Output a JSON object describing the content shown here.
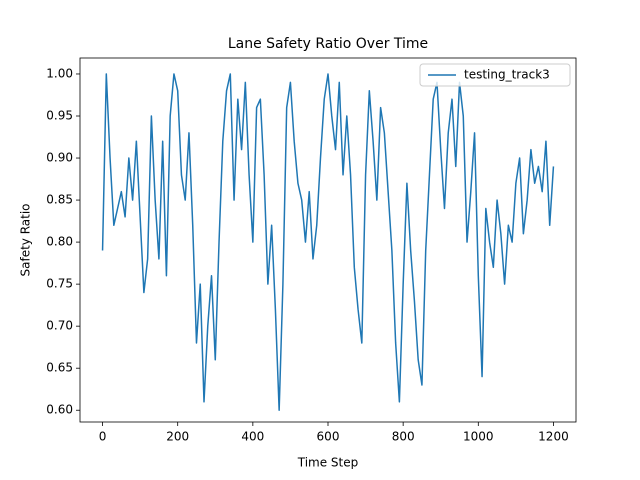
{
  "chart_data": {
    "type": "line",
    "title": "Lane Safety Ratio Over Time",
    "xlabel": "Time Step",
    "ylabel": "Safety Ratio",
    "x": [
      0,
      10,
      20,
      30,
      40,
      50,
      60,
      70,
      80,
      90,
      100,
      110,
      120,
      130,
      140,
      150,
      160,
      170,
      180,
      190,
      200,
      210,
      220,
      230,
      240,
      250,
      260,
      270,
      280,
      290,
      300,
      310,
      320,
      330,
      340,
      350,
      360,
      370,
      380,
      390,
      400,
      410,
      420,
      430,
      440,
      450,
      460,
      470,
      480,
      490,
      500,
      510,
      520,
      530,
      540,
      550,
      560,
      570,
      580,
      590,
      600,
      610,
      620,
      630,
      640,
      650,
      660,
      670,
      680,
      690,
      700,
      710,
      720,
      730,
      740,
      750,
      760,
      770,
      780,
      790,
      800,
      810,
      820,
      830,
      840,
      850,
      860,
      870,
      880,
      890,
      900,
      910,
      920,
      930,
      940,
      950,
      960,
      970,
      980,
      990,
      1000,
      1010,
      1020,
      1030,
      1040,
      1050,
      1060,
      1070,
      1080,
      1090,
      1100,
      1110,
      1120,
      1130,
      1140,
      1150,
      1160,
      1170,
      1180,
      1190,
      1200
    ],
    "series": [
      {
        "name": "testing_track3",
        "color": "#1f77b4",
        "values": [
          0.79,
          1.0,
          0.9,
          0.82,
          0.84,
          0.86,
          0.83,
          0.9,
          0.85,
          0.92,
          0.83,
          0.74,
          0.78,
          0.95,
          0.85,
          0.78,
          0.92,
          0.76,
          0.95,
          1.0,
          0.98,
          0.88,
          0.85,
          0.93,
          0.82,
          0.68,
          0.75,
          0.61,
          0.7,
          0.76,
          0.66,
          0.8,
          0.92,
          0.98,
          1.0,
          0.85,
          0.97,
          0.91,
          0.99,
          0.88,
          0.8,
          0.96,
          0.97,
          0.88,
          0.75,
          0.82,
          0.72,
          0.6,
          0.75,
          0.96,
          0.99,
          0.92,
          0.87,
          0.85,
          0.8,
          0.86,
          0.78,
          0.82,
          0.9,
          0.97,
          1.0,
          0.95,
          0.91,
          0.99,
          0.88,
          0.95,
          0.88,
          0.77,
          0.72,
          0.68,
          0.88,
          0.98,
          0.92,
          0.85,
          0.96,
          0.93,
          0.86,
          0.79,
          0.68,
          0.61,
          0.75,
          0.87,
          0.79,
          0.73,
          0.66,
          0.63,
          0.79,
          0.88,
          0.97,
          0.99,
          0.91,
          0.84,
          0.93,
          0.97,
          0.89,
          0.99,
          0.95,
          0.8,
          0.86,
          0.93,
          0.76,
          0.64,
          0.84,
          0.8,
          0.77,
          0.85,
          0.81,
          0.75,
          0.82,
          0.8,
          0.87,
          0.9,
          0.81,
          0.85,
          0.91,
          0.87,
          0.89,
          0.86,
          0.92,
          0.82,
          0.89
        ]
      }
    ],
    "xlim": [
      -60,
      1260
    ],
    "ylim": [
      0.586,
      1.019
    ],
    "xticks": [
      0,
      200,
      400,
      600,
      800,
      1000,
      1200
    ],
    "yticks": [
      {
        "value": 0.6,
        "label": "0.60"
      },
      {
        "value": 0.65,
        "label": "0.65"
      },
      {
        "value": 0.7,
        "label": "0.70"
      },
      {
        "value": 0.75,
        "label": "0.75"
      },
      {
        "value": 0.8,
        "label": "0.80"
      },
      {
        "value": 0.85,
        "label": "0.85"
      },
      {
        "value": 0.9,
        "label": "0.90"
      },
      {
        "value": 0.95,
        "label": "0.95"
      },
      {
        "value": 1.0,
        "label": "1.00"
      }
    ],
    "legend": "upper right"
  }
}
